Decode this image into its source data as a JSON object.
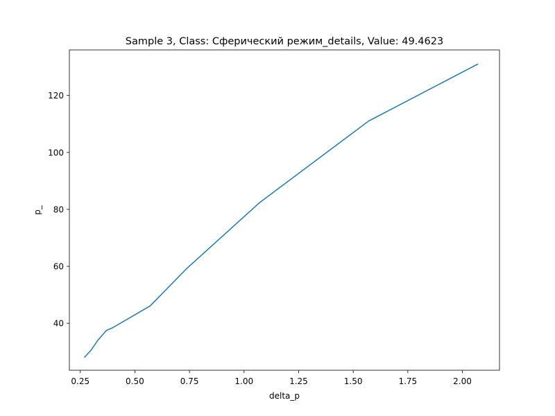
{
  "chart_data": {
    "type": "line",
    "title": "Sample 3, Class: Сферический режим_details, Value: 49.4623",
    "xlabel": "delta_p",
    "ylabel": "p_",
    "xlim": [
      0.2,
      2.17
    ],
    "ylim": [
      23.5,
      136
    ],
    "grid": false,
    "line_color": "#1f77b4",
    "xticks": [
      0.25,
      0.5,
      0.75,
      1.0,
      1.25,
      1.5,
      1.75,
      2.0
    ],
    "xtick_labels": [
      "0.25",
      "0.50",
      "0.75",
      "1.00",
      "1.25",
      "1.50",
      "1.75",
      "2.00"
    ],
    "yticks": [
      40,
      60,
      80,
      100,
      120
    ],
    "ytick_labels": [
      "40",
      "60",
      "80",
      "100",
      "120"
    ],
    "series": [
      {
        "x": [
          0.27,
          0.3,
          0.33,
          0.37,
          0.4,
          0.57,
          0.74,
          1.07,
          1.57,
          2.07
        ],
        "y": [
          28.1,
          30.6,
          34.0,
          37.5,
          38.5,
          46.1,
          59.4,
          82.3,
          111.0,
          131.0
        ]
      }
    ]
  }
}
